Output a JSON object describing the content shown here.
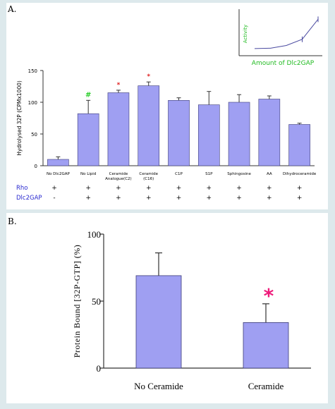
{
  "colors": {
    "bar_fill": "#9f9ff2",
    "bar_stroke": "#3c3c78",
    "green_star": "#22cc22",
    "red_star": "#e02020",
    "pink_star": "#ee1a7a",
    "inset_text": "#22bb22",
    "row_label": "#2a2ad0",
    "inset_line": "#4a4aa0",
    "background": "#dde9ec"
  },
  "panel_a": {
    "label": "A.",
    "row_labels": [
      "Rho",
      "Dlc2GAP"
    ],
    "row_marks": {
      "rho": [
        "+",
        "+",
        "+",
        "+",
        "+",
        "+",
        "+",
        "+",
        "+"
      ],
      "dlc2gap": [
        "-",
        "+",
        "+",
        "+",
        "+",
        "+",
        "+",
        "+",
        "+"
      ]
    },
    "inset": {
      "ylabel": "Activity",
      "xlabel": "Amount of Dlc2GAP"
    }
  },
  "panel_b": {
    "label": "B."
  },
  "chart_data": [
    {
      "type": "bar",
      "categories": [
        "No Dlc2GAP",
        "No Lipid",
        "Ceramide Analogue(C2)",
        "Ceramide (C16)",
        "C1P",
        "S1P",
        "Sphingosine",
        "AA",
        "Dihydroceramide"
      ],
      "category_lines": [
        [
          "No Dlc2GAP"
        ],
        [
          "No Lipid"
        ],
        [
          "Ceramide",
          "Analogue(C2)"
        ],
        [
          "Ceramide",
          "(C16)"
        ],
        [
          "C1P"
        ],
        [
          "S1P"
        ],
        [
          "Sphingosine"
        ],
        [
          "AA"
        ],
        [
          "Dihydroceramide"
        ]
      ],
      "values": [
        10,
        82,
        115,
        126,
        103,
        96,
        100,
        105,
        65
      ],
      "errors": [
        4,
        21,
        4,
        6,
        4,
        21,
        12,
        5,
        2
      ],
      "annotations": [
        "",
        "#",
        "*",
        "*",
        "",
        "",
        "",
        "",
        ""
      ],
      "xlabel": "",
      "ylabel": "Hydrolysed 32P (CPMx1000)",
      "ylim": [
        0,
        150
      ],
      "yticks": [
        0,
        50,
        100,
        150
      ],
      "grid": false
    },
    {
      "type": "line",
      "x": [
        0,
        1,
        2,
        3,
        4
      ],
      "values": [
        1,
        1.2,
        3,
        7,
        20
      ],
      "ylabel": "Activity",
      "xlabel": "Amount of Dlc2GAP",
      "grid": false
    },
    {
      "type": "bar",
      "categories": [
        "No Ceramide",
        "Ceramide"
      ],
      "values": [
        69,
        34
      ],
      "errors": [
        17,
        14
      ],
      "annotations": [
        "",
        "*"
      ],
      "xlabel": "",
      "ylabel": "Protein Bound [32P-GTP] (%)",
      "ylim": [
        0,
        100
      ],
      "yticks": [
        0,
        50,
        100
      ],
      "grid": false
    }
  ]
}
